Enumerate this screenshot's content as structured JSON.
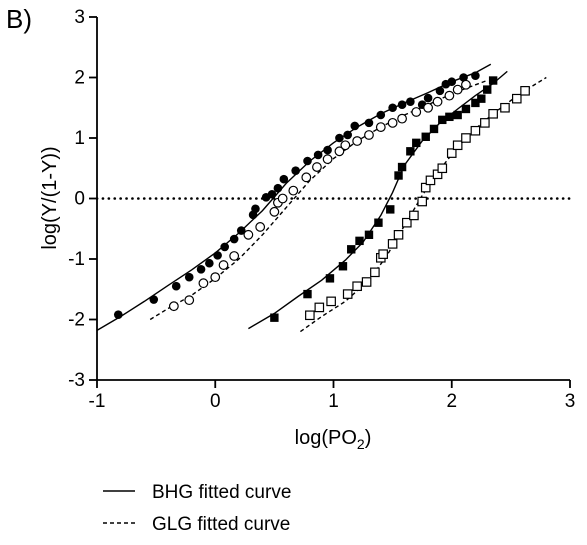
{
  "chart_data": {
    "type": "scatter",
    "panel_label": "B)",
    "xlabel_main": "log(PO",
    "xlabel_sub": "2",
    "xlabel_close": ")",
    "ylabel": "log(Y/(1-Y))",
    "xlim": [
      -1,
      3
    ],
    "ylim": [
      -3,
      3
    ],
    "xticks": [
      -1,
      0,
      1,
      2,
      3
    ],
    "yticks": [
      -3,
      -2,
      -1,
      0,
      1,
      2,
      3
    ],
    "xtick_labels": [
      "-1",
      "0",
      "1",
      "2",
      "3"
    ],
    "ytick_labels": [
      "-3",
      "-2",
      "-1",
      "0",
      "1",
      "2",
      "3"
    ],
    "grid": false,
    "reference_line": {
      "y": 0,
      "style": "dotted"
    },
    "legend": {
      "placement": "bottom",
      "items": [
        {
          "label": "BHG fitted curve",
          "style": "solid"
        },
        {
          "label": "GLG fitted curve",
          "style": "dashed"
        }
      ]
    },
    "series": [
      {
        "marker": "filled-circle",
        "points": [
          [
            -0.82,
            -1.92
          ],
          [
            -0.52,
            -1.67
          ],
          [
            -0.33,
            -1.45
          ],
          [
            -0.22,
            -1.3
          ],
          [
            -0.12,
            -1.17
          ],
          [
            -0.05,
            -1.07
          ],
          [
            0.02,
            -0.94
          ],
          [
            0.08,
            -0.8
          ],
          [
            0.16,
            -0.67
          ],
          [
            0.22,
            -0.53
          ],
          [
            0.32,
            -0.27
          ],
          [
            0.34,
            -0.17
          ],
          [
            0.43,
            0.02
          ],
          [
            0.48,
            0.07
          ],
          [
            0.53,
            0.17
          ],
          [
            0.58,
            0.32
          ],
          [
            0.68,
            0.46
          ],
          [
            0.78,
            0.62
          ],
          [
            0.87,
            0.72
          ],
          [
            0.95,
            0.8
          ],
          [
            1.05,
            1.0
          ],
          [
            1.12,
            1.05
          ],
          [
            1.18,
            1.2
          ],
          [
            1.3,
            1.25
          ],
          [
            1.4,
            1.38
          ],
          [
            1.5,
            1.5
          ],
          [
            1.58,
            1.55
          ],
          [
            1.65,
            1.6
          ],
          [
            1.75,
            1.55
          ],
          [
            1.8,
            1.66
          ],
          [
            1.9,
            1.78
          ],
          [
            1.95,
            1.89
          ],
          [
            2.0,
            1.93
          ],
          [
            2.1,
            2.0
          ],
          [
            2.2,
            2.03
          ]
        ]
      },
      {
        "marker": "open-circle",
        "points": [
          [
            -0.35,
            -1.78
          ],
          [
            -0.22,
            -1.68
          ],
          [
            -0.1,
            -1.4
          ],
          [
            0.0,
            -1.3
          ],
          [
            0.07,
            -1.1
          ],
          [
            0.16,
            -0.95
          ],
          [
            0.28,
            -0.6
          ],
          [
            0.38,
            -0.47
          ],
          [
            0.5,
            -0.22
          ],
          [
            0.53,
            -0.07
          ],
          [
            0.57,
            0.0
          ],
          [
            0.66,
            0.13
          ],
          [
            0.77,
            0.35
          ],
          [
            0.86,
            0.52
          ],
          [
            0.95,
            0.65
          ],
          [
            1.05,
            0.78
          ],
          [
            1.1,
            0.88
          ],
          [
            1.2,
            0.95
          ],
          [
            1.3,
            1.05
          ],
          [
            1.4,
            1.18
          ],
          [
            1.5,
            1.25
          ],
          [
            1.58,
            1.32
          ],
          [
            1.7,
            1.43
          ],
          [
            1.8,
            1.5
          ],
          [
            1.88,
            1.6
          ],
          [
            1.98,
            1.7
          ],
          [
            2.05,
            1.8
          ],
          [
            2.12,
            1.88
          ]
        ]
      },
      {
        "marker": "filled-square",
        "points": [
          [
            0.5,
            -1.97
          ],
          [
            0.78,
            -1.58
          ],
          [
            0.97,
            -1.32
          ],
          [
            1.08,
            -1.12
          ],
          [
            1.15,
            -0.84
          ],
          [
            1.22,
            -0.7
          ],
          [
            1.3,
            -0.6
          ],
          [
            1.38,
            -0.4
          ],
          [
            1.48,
            -0.18
          ],
          [
            1.55,
            0.38
          ],
          [
            1.58,
            0.52
          ],
          [
            1.65,
            0.78
          ],
          [
            1.7,
            0.92
          ],
          [
            1.78,
            1.02
          ],
          [
            1.85,
            1.15
          ],
          [
            1.92,
            1.3
          ],
          [
            1.98,
            1.35
          ],
          [
            2.05,
            1.38
          ],
          [
            2.12,
            1.48
          ],
          [
            2.2,
            1.58
          ],
          [
            2.25,
            1.65
          ],
          [
            2.3,
            1.8
          ],
          [
            2.35,
            1.95
          ]
        ]
      },
      {
        "marker": "open-square",
        "points": [
          [
            0.8,
            -1.93
          ],
          [
            0.88,
            -1.8
          ],
          [
            0.98,
            -1.7
          ],
          [
            1.12,
            -1.58
          ],
          [
            1.2,
            -1.45
          ],
          [
            1.28,
            -1.38
          ],
          [
            1.35,
            -1.22
          ],
          [
            1.4,
            -0.98
          ],
          [
            1.42,
            -0.92
          ],
          [
            1.5,
            -0.75
          ],
          [
            1.55,
            -0.6
          ],
          [
            1.62,
            -0.4
          ],
          [
            1.68,
            -0.28
          ],
          [
            1.75,
            -0.05
          ],
          [
            1.78,
            0.18
          ],
          [
            1.82,
            0.3
          ],
          [
            1.88,
            0.4
          ],
          [
            1.92,
            0.5
          ],
          [
            2.0,
            0.75
          ],
          [
            2.05,
            0.88
          ],
          [
            2.12,
            1.0
          ],
          [
            2.2,
            1.12
          ],
          [
            2.28,
            1.25
          ],
          [
            2.35,
            1.4
          ],
          [
            2.45,
            1.5
          ],
          [
            2.55,
            1.65
          ],
          [
            2.62,
            1.78
          ]
        ]
      }
    ],
    "curves": [
      {
        "style": "solid",
        "points": [
          [
            -1.0,
            -2.18
          ],
          [
            -0.8,
            -1.95
          ],
          [
            -0.6,
            -1.7
          ],
          [
            -0.4,
            -1.44
          ],
          [
            -0.2,
            -1.18
          ],
          [
            0.0,
            -0.9
          ],
          [
            0.2,
            -0.57
          ],
          [
            0.4,
            -0.2
          ],
          [
            0.6,
            0.25
          ],
          [
            0.8,
            0.62
          ],
          [
            1.0,
            0.92
          ],
          [
            1.2,
            1.18
          ],
          [
            1.4,
            1.4
          ],
          [
            1.6,
            1.58
          ],
          [
            1.8,
            1.75
          ],
          [
            2.0,
            1.93
          ],
          [
            2.2,
            2.08
          ],
          [
            2.33,
            2.22
          ]
        ]
      },
      {
        "style": "dashed",
        "points": [
          [
            -0.55,
            -2.0
          ],
          [
            -0.4,
            -1.82
          ],
          [
            -0.2,
            -1.6
          ],
          [
            0.0,
            -1.32
          ],
          [
            0.2,
            -1.0
          ],
          [
            0.4,
            -0.6
          ],
          [
            0.6,
            -0.15
          ],
          [
            0.8,
            0.3
          ],
          [
            1.0,
            0.66
          ],
          [
            1.2,
            0.95
          ],
          [
            1.4,
            1.18
          ],
          [
            1.6,
            1.38
          ],
          [
            1.8,
            1.55
          ],
          [
            2.0,
            1.73
          ],
          [
            2.2,
            1.88
          ],
          [
            2.3,
            1.95
          ]
        ]
      },
      {
        "style": "solid",
        "points": [
          [
            0.28,
            -2.15
          ],
          [
            0.5,
            -1.9
          ],
          [
            0.7,
            -1.62
          ],
          [
            0.9,
            -1.35
          ],
          [
            1.1,
            -1.02
          ],
          [
            1.25,
            -0.72
          ],
          [
            1.4,
            -0.28
          ],
          [
            1.5,
            0.1
          ],
          [
            1.6,
            0.55
          ],
          [
            1.75,
            0.95
          ],
          [
            1.9,
            1.25
          ],
          [
            2.05,
            1.48
          ],
          [
            2.2,
            1.7
          ],
          [
            2.35,
            1.9
          ],
          [
            2.47,
            2.1
          ]
        ]
      },
      {
        "style": "dashed",
        "points": [
          [
            0.72,
            -2.2
          ],
          [
            0.9,
            -1.95
          ],
          [
            1.1,
            -1.7
          ],
          [
            1.3,
            -1.35
          ],
          [
            1.45,
            -0.95
          ],
          [
            1.6,
            -0.45
          ],
          [
            1.75,
            0.05
          ],
          [
            1.9,
            0.48
          ],
          [
            2.05,
            0.85
          ],
          [
            2.2,
            1.15
          ],
          [
            2.35,
            1.4
          ],
          [
            2.5,
            1.62
          ],
          [
            2.65,
            1.82
          ],
          [
            2.8,
            2.0
          ]
        ]
      }
    ]
  }
}
